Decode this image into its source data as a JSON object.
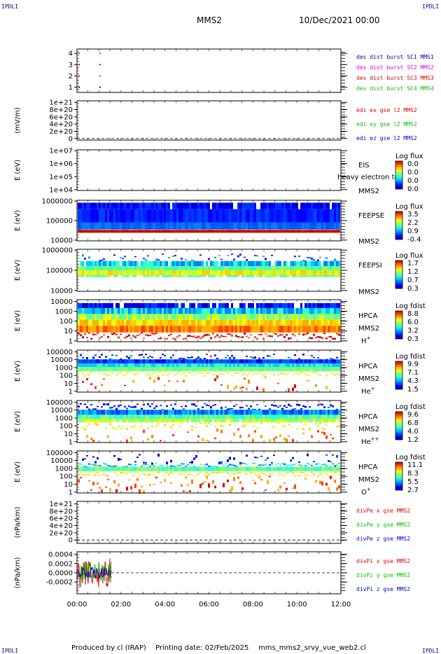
{
  "corners": {
    "tl": "IPDLI",
    "tr": "IPDLI",
    "bl": "IPDLI",
    "br": "IPDLI"
  },
  "header": {
    "spacecraft": "MMS2",
    "datetime": "10/Dec/2021 00:00"
  },
  "footer": {
    "produced": "Produced by cl (IRAP)",
    "printing": "Printing date: 02/Feb/2025",
    "file": "mms_mms2_srvy_vue_web2.cl"
  },
  "colors": {
    "red": "#e00000",
    "green": "#00c000",
    "blue": "#0000c0",
    "magenta": "#e000e0",
    "dash": "#000000"
  },
  "chart_data": [
    {
      "type": "scatter",
      "id": "burst",
      "yticks": [
        "4",
        "3",
        "2",
        "1"
      ],
      "legend": [
        {
          "text": "des dist burst SC1 MMS1",
          "color": "#0000c0"
        },
        {
          "text": "des dist burst SC2 MMS2",
          "color": "#e000e0"
        },
        {
          "text": "des dist burst SC3 MMS3",
          "color": "#e00000"
        },
        {
          "text": "des dist burst SC4 MMS4",
          "color": "#00c000"
        }
      ]
    },
    {
      "type": "line",
      "id": "edi",
      "ylabel": "(mV/m)",
      "yticks": [
        "1e+21",
        "8e+20",
        "6e+20",
        "4e+20",
        "2e+20",
        "0"
      ],
      "legend": [
        {
          "text": "edi ex gse l2 MMS2",
          "color": "#e00000"
        },
        {
          "text": "edi ey gse l2 MMS2",
          "color": "#00c000"
        },
        {
          "text": "edi ez gse l2 MMS2",
          "color": "#0000c0"
        }
      ]
    },
    {
      "type": "heatmap",
      "id": "eis",
      "ylabel": "E (eV)",
      "yticks": [
        "1e+07",
        "1e+06",
        "1e+05",
        "1e+04"
      ],
      "labels": [
        "EIS",
        "MMS2"
      ],
      "overlay": "heavy electron to",
      "cb_title": "Log flux",
      "cb_values": [
        "0.0",
        "0.0",
        "0.0",
        "0.0"
      ]
    },
    {
      "type": "heatmap",
      "id": "feepse",
      "ylabel": "E (eV)",
      "yticks": [
        "1000000",
        "100000",
        "10000"
      ],
      "labels": [
        "FEEPSE",
        "MMS2"
      ],
      "cb_title": "Log flux",
      "cb_values": [
        "3.5",
        "2.2",
        "0.9",
        "-0.4"
      ]
    },
    {
      "type": "heatmap",
      "id": "feepsi",
      "ylabel": "E (eV)",
      "yticks": [
        "1000000",
        "100000",
        "10000"
      ],
      "labels": [
        "FEEPSI",
        "MMS2"
      ],
      "cb_title": "Log flux",
      "cb_values": [
        "1.7",
        "1.2",
        "0.7",
        "0.3"
      ]
    },
    {
      "type": "heatmap",
      "id": "hpca_h",
      "ylabel": "E (eV)",
      "yticks": [
        "10000",
        "1000",
        "100",
        "10",
        "1"
      ],
      "labels": [
        "HPCA",
        "MMS2"
      ],
      "species": "H",
      "sup": "+",
      "cb_title": "Log fdist",
      "cb_values": [
        "8.8",
        "6.0",
        "3.2",
        "0.3"
      ]
    },
    {
      "type": "heatmap",
      "id": "hpca_he",
      "ylabel": "E (eV)",
      "yticks": [
        "100000",
        "10000",
        "1000",
        "100",
        "10",
        "1"
      ],
      "labels": [
        "HPCA",
        "MMS2"
      ],
      "species": "He",
      "sup": "+",
      "cb_title": "Log fdist",
      "cb_values": [
        "9.9",
        "7.1",
        "4.3",
        "1.5"
      ]
    },
    {
      "type": "heatmap",
      "id": "hpca_he2",
      "ylabel": "E (eV)",
      "yticks": [
        "100000",
        "10000",
        "1000",
        "100",
        "10",
        "1"
      ],
      "labels": [
        "HPCA",
        "MMS2"
      ],
      "species": "He",
      "sup": "++",
      "cb_title": "Log fdist",
      "cb_values": [
        "9.6",
        "6.8",
        "4.0",
        "1.2"
      ]
    },
    {
      "type": "heatmap",
      "id": "hpca_o",
      "ylabel": "E (eV)",
      "yticks": [
        "100000",
        "10000",
        "1000",
        "100",
        "10",
        "1"
      ],
      "labels": [
        "HPCA",
        "MMS2"
      ],
      "species": "O",
      "sup": "+",
      "cb_title": "Log fdist",
      "cb_values": [
        "11.1",
        "8.3",
        "5.5",
        "2.7"
      ]
    },
    {
      "type": "line",
      "id": "divpe",
      "ylabel": "(nPa/km)",
      "yticks": [
        "1e+21",
        "8e+20",
        "6e+20",
        "4e+20",
        "2e+20",
        "0"
      ],
      "legend": [
        {
          "text": "divPe x gse MMS2",
          "color": "#e00000"
        },
        {
          "text": "divPe y gse MMS2",
          "color": "#00c000"
        },
        {
          "text": "divPe z gse MMS2",
          "color": "#0000c0"
        }
      ]
    },
    {
      "type": "line",
      "id": "divpi",
      "ylabel": "(nPa/km)",
      "yticks": [
        "0.0004",
        "0.0002",
        "0.0000",
        "-0.0002"
      ],
      "legend": [
        {
          "text": "divPi x gse MMS2",
          "color": "#e00000"
        },
        {
          "text": "divPi y gse MMS2",
          "color": "#00c000"
        },
        {
          "text": "divPi z gse MMS2",
          "color": "#0000c0"
        }
      ]
    }
  ],
  "xaxis": {
    "ticks": [
      "00:00",
      "02:00",
      "04:00",
      "06:00",
      "08:00",
      "10:00",
      "12:00"
    ]
  }
}
